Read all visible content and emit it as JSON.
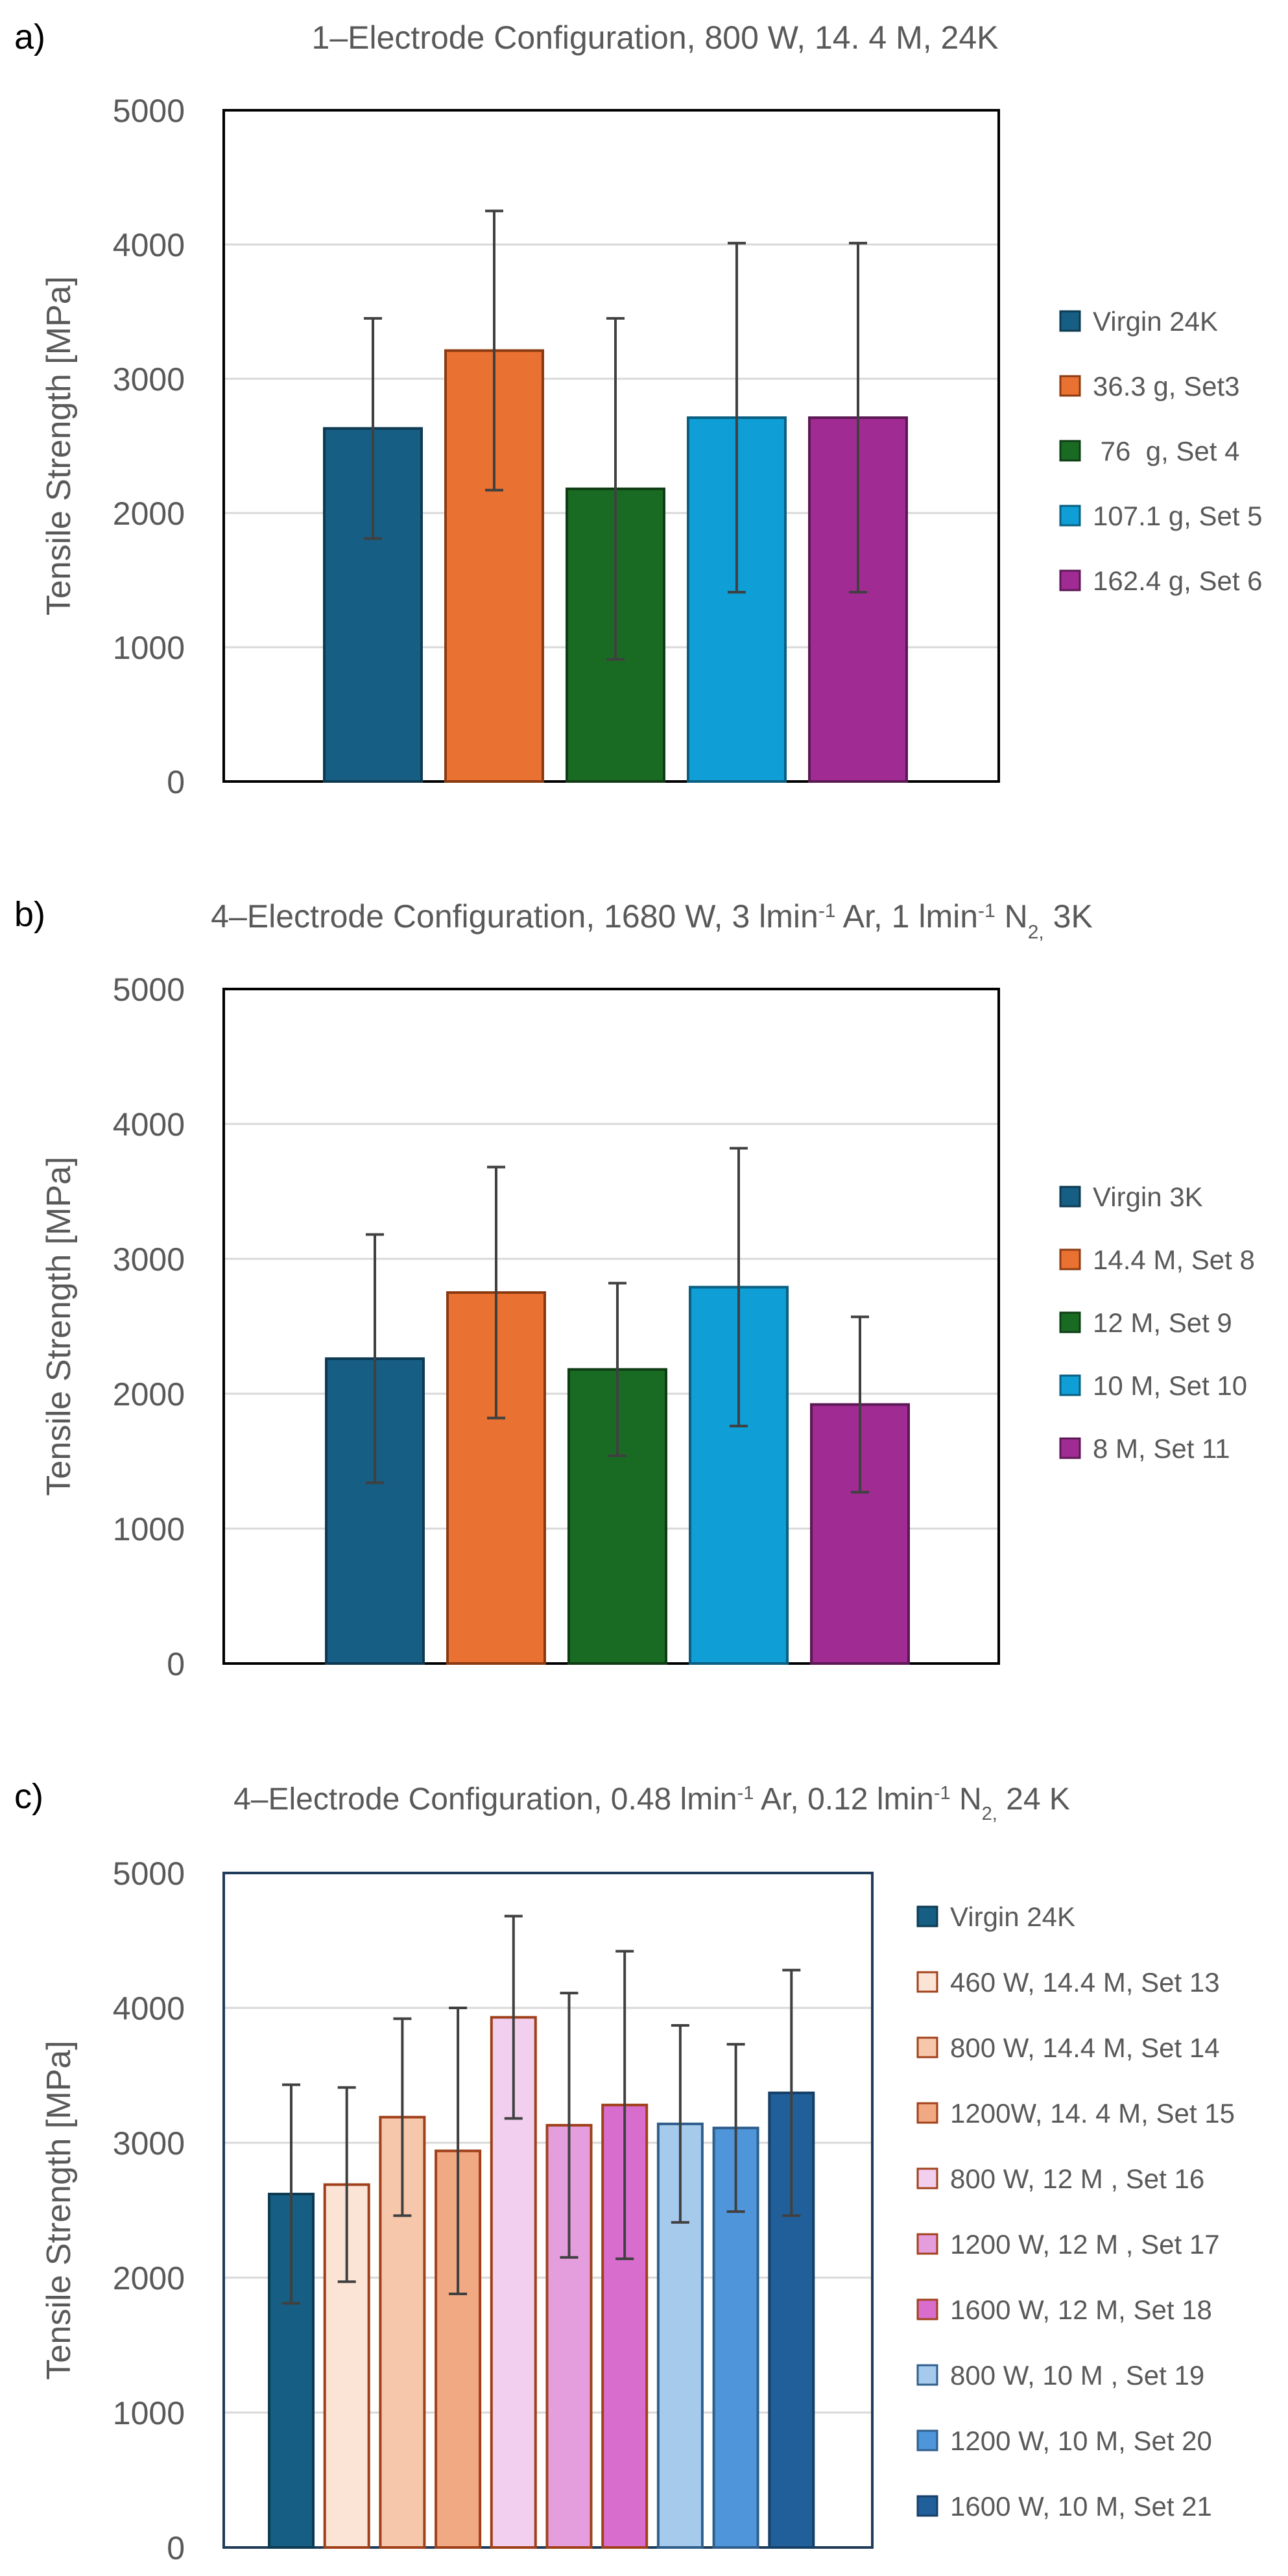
{
  "chart_data": [
    {
      "type": "bar",
      "panel_label": "a)",
      "title": "1–Electrode Configuration, 800 W, 14. 4 M, 24K",
      "ylabel": "Tensile Strength [MPa]",
      "ylim": [
        0,
        5000
      ],
      "yticks": [
        0,
        1000,
        2000,
        3000,
        4000,
        5000
      ],
      "grid": true,
      "legend_position": "right",
      "series": [
        {
          "name": "Virgin 24K",
          "value": 2630,
          "error": 820,
          "color": "#165e83",
          "border": "#0d3a52"
        },
        {
          "name": "36.3 g, Set3",
          "value": 3210,
          "error": 1040,
          "color": "#e97132",
          "border": "#8a3a12"
        },
        {
          "name": " 76  g, Set 4",
          "value": 2180,
          "error": 1270,
          "color": "#196b24",
          "border": "#0e3d14"
        },
        {
          "name": "107.1 g, Set 5",
          "value": 2710,
          "error": 1300,
          "color": "#0f9ed5",
          "border": "#0a5f82"
        },
        {
          "name": "162.4 g, Set 6",
          "value": 2710,
          "error": 1300,
          "color": "#a02b93",
          "border": "#5c1854"
        }
      ]
    },
    {
      "type": "bar",
      "panel_label": "b)",
      "title": "4–Electrode Configuration, 1680 W, 3 lmin",
      "title_sup1": "-1",
      "title_mid": " Ar, 1 lmin",
      "title_sup2": "-1",
      "title_mid2": " N",
      "title_sub": "2,",
      "title_end": " 3K",
      "ylabel": "Tensile Strength [MPa]",
      "ylim": [
        0,
        5000
      ],
      "yticks": [
        0,
        1000,
        2000,
        3000,
        4000,
        5000
      ],
      "grid": true,
      "legend_position": "right",
      "series": [
        {
          "name": "Virgin 3K",
          "value": 2260,
          "error": 920,
          "color": "#165e83",
          "border": "#0d3a52"
        },
        {
          "name": "14.4 M, Set 8",
          "value": 2750,
          "error": 930,
          "color": "#e97132",
          "border": "#8a3a12"
        },
        {
          "name": "12 M, Set 9",
          "value": 2180,
          "error": 640,
          "color": "#196b24",
          "border": "#0e3d14"
        },
        {
          "name": "10 M, Set 10",
          "value": 2790,
          "error": 1030,
          "color": "#0f9ed5",
          "border": "#0a5f82"
        },
        {
          "name": "8 M, Set 11",
          "value": 1920,
          "error": 650,
          "color": "#a02b93",
          "border": "#5c1854"
        }
      ]
    },
    {
      "type": "bar",
      "panel_label": "c)",
      "title": "4–Electrode Configuration, 0.48 lmin",
      "title_sup1": "-1",
      "title_mid": " Ar, 0.12 lmin",
      "title_sup2": "-1",
      "title_mid2": " N",
      "title_sub": "2,",
      "title_end": " 24 K",
      "ylabel": "Tensile Strength [MPa]",
      "ylim": [
        0,
        5000
      ],
      "yticks": [
        0,
        1000,
        2000,
        3000,
        4000,
        5000
      ],
      "grid": true,
      "legend_position": "right",
      "series": [
        {
          "name": "Virgin 24K",
          "value": 2620,
          "error": 810,
          "color": "#165e83",
          "border": "#0d3a52"
        },
        {
          "name": "460 W, 14.4 M, Set 13",
          "value": 2690,
          "error": 720,
          "color": "#fbe3d6",
          "border": "#a0401a"
        },
        {
          "name": "800 W, 14.4 M, Set 14",
          "value": 3190,
          "error": 730,
          "color": "#f7c7ac",
          "border": "#a0401a"
        },
        {
          "name": "1200W, 14. 4 M, Set 15",
          "value": 2940,
          "error": 1060,
          "color": "#f1a983",
          "border": "#a0401a"
        },
        {
          "name": "800 W, 12 M , Set 16",
          "value": 3930,
          "error": 750,
          "color": "#f2ceef",
          "border": "#a0401a"
        },
        {
          "name": "1200 W, 12 M , Set 17",
          "value": 3130,
          "error": 980,
          "color": "#e59edd",
          "border": "#a0401a"
        },
        {
          "name": "1600 W, 12 M, Set 18",
          "value": 3280,
          "error": 1140,
          "color": "#d86dcd",
          "border": "#a0401a"
        },
        {
          "name": "800 W, 10 M , Set 19",
          "value": 3140,
          "error": 730,
          "color": "#a6caec",
          "border": "#2f5e8c"
        },
        {
          "name": "1200 W, 10 M, Set 20",
          "value": 3110,
          "error": 620,
          "color": "#4e95d9",
          "border": "#2f5e8c"
        },
        {
          "name": "1600 W, 10 M, Set 21",
          "value": 3370,
          "error": 910,
          "color": "#215f9a",
          "border": "#163f66"
        }
      ]
    }
  ]
}
